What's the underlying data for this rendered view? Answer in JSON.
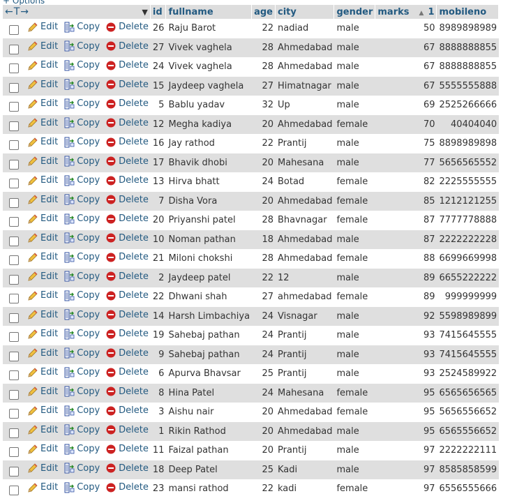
{
  "toolbar": {
    "options_label": "+ Options"
  },
  "header": {
    "nav_left": "←",
    "nav_t": "T",
    "nav_right": "→",
    "sort_caret": "▼",
    "columns": {
      "id": "id",
      "fullname": "fullname",
      "age": "age",
      "city": "city",
      "gender": "gender",
      "marks": "marks",
      "marks_sort_icon": "▲",
      "marks_sort_order": "1",
      "mobileno": "mobileno"
    }
  },
  "actions": {
    "edit": "Edit",
    "copy": "Copy",
    "delete": "Delete"
  },
  "icons": {
    "edit": "pencil-icon",
    "copy": "copy-icon",
    "delete": "delete-icon"
  },
  "colors": {
    "link": "#235a81",
    "row_alt": "#dfdfdf",
    "header_bg": "#dddddd",
    "delete_red": "#cc2222"
  },
  "rows": [
    {
      "id": "26",
      "fullname": "Raju Barot",
      "age": "22",
      "city": "nadiad",
      "gender": "male",
      "marks": "50",
      "mobileno": "8989898989"
    },
    {
      "id": "27",
      "fullname": "Vivek vaghela",
      "age": "28",
      "city": "Ahmedabad",
      "gender": "male",
      "marks": "67",
      "mobileno": "8888888855"
    },
    {
      "id": "24",
      "fullname": "Vivek vaghela",
      "age": "28",
      "city": "Ahmedabad",
      "gender": "male",
      "marks": "67",
      "mobileno": "8888888855"
    },
    {
      "id": "15",
      "fullname": "Jaydeep vaghela",
      "age": "27",
      "city": "Himatnagar",
      "gender": "male",
      "marks": "67",
      "mobileno": "5555555888"
    },
    {
      "id": "5",
      "fullname": "Bablu yadav",
      "age": "32",
      "city": "Up",
      "gender": "male",
      "marks": "69",
      "mobileno": "2525266666"
    },
    {
      "id": "12",
      "fullname": "Megha kadiya",
      "age": "20",
      "city": "Ahmedabad",
      "gender": "female",
      "marks": "70",
      "mobileno": "40404040"
    },
    {
      "id": "16",
      "fullname": "Jay rathod",
      "age": "22",
      "city": "Prantij",
      "gender": "male",
      "marks": "75",
      "mobileno": "8898989898"
    },
    {
      "id": "17",
      "fullname": "Bhavik dhobi",
      "age": "20",
      "city": "Mahesana",
      "gender": "male",
      "marks": "77",
      "mobileno": "5656565552"
    },
    {
      "id": "13",
      "fullname": "Hirva bhatt",
      "age": "24",
      "city": "Botad",
      "gender": "female",
      "marks": "82",
      "mobileno": "2225555555"
    },
    {
      "id": "7",
      "fullname": "Disha Vora",
      "age": "20",
      "city": "Ahmedabad",
      "gender": "female",
      "marks": "85",
      "mobileno": "1212121255"
    },
    {
      "id": "20",
      "fullname": "Priyanshi patel",
      "age": "28",
      "city": "Bhavnagar",
      "gender": "female",
      "marks": "87",
      "mobileno": "7777778888"
    },
    {
      "id": "10",
      "fullname": "Noman pathan",
      "age": "18",
      "city": "Ahmedabad",
      "gender": "male",
      "marks": "87",
      "mobileno": "2222222228"
    },
    {
      "id": "21",
      "fullname": "Miloni chokshi",
      "age": "28",
      "city": "Ahmedabad",
      "gender": "female",
      "marks": "88",
      "mobileno": "6699669998"
    },
    {
      "id": "2",
      "fullname": "Jaydeep patel",
      "age": "22",
      "city": "12",
      "gender": "male",
      "marks": "89",
      "mobileno": "6655222222"
    },
    {
      "id": "22",
      "fullname": "Dhwani shah",
      "age": "27",
      "city": "ahmedabad",
      "gender": "female",
      "marks": "89",
      "mobileno": "999999999"
    },
    {
      "id": "14",
      "fullname": "Harsh Limbachiya",
      "age": "24",
      "city": "Visnagar",
      "gender": "male",
      "marks": "92",
      "mobileno": "5598989899"
    },
    {
      "id": "19",
      "fullname": "Sahebaj pathan",
      "age": "24",
      "city": "Prantij",
      "gender": "male",
      "marks": "93",
      "mobileno": "7415645555"
    },
    {
      "id": "9",
      "fullname": "Sahebaj pathan",
      "age": "24",
      "city": "Prantij",
      "gender": "male",
      "marks": "93",
      "mobileno": "7415645555"
    },
    {
      "id": "6",
      "fullname": "Apurva Bhavsar",
      "age": "25",
      "city": "Prantij",
      "gender": "male",
      "marks": "93",
      "mobileno": "2524589922"
    },
    {
      "id": "8",
      "fullname": "Hina Patel",
      "age": "24",
      "city": "Mahesana",
      "gender": "female",
      "marks": "95",
      "mobileno": "6565656565"
    },
    {
      "id": "3",
      "fullname": "Aishu nair",
      "age": "20",
      "city": "Ahmedabad",
      "gender": "female",
      "marks": "95",
      "mobileno": "5656556652"
    },
    {
      "id": "1",
      "fullname": "Rikin Rathod",
      "age": "20",
      "city": "Ahmedabad",
      "gender": "male",
      "marks": "95",
      "mobileno": "6565556652"
    },
    {
      "id": "11",
      "fullname": "Faizal pathan",
      "age": "20",
      "city": "Prantij",
      "gender": "male",
      "marks": "97",
      "mobileno": "2222222111"
    },
    {
      "id": "18",
      "fullname": "Deep Patel",
      "age": "25",
      "city": "Kadi",
      "gender": "male",
      "marks": "97",
      "mobileno": "8585858599"
    },
    {
      "id": "23",
      "fullname": "mansi rathod",
      "age": "22",
      "city": "kadi",
      "gender": "female",
      "marks": "97",
      "mobileno": "6556555666"
    }
  ]
}
